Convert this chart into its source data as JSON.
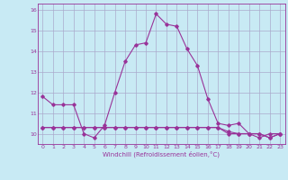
{
  "xlabel": "Windchill (Refroidissement éolien,°C)",
  "x": [
    0,
    1,
    2,
    3,
    4,
    5,
    6,
    7,
    8,
    9,
    10,
    11,
    12,
    13,
    14,
    15,
    16,
    17,
    18,
    19,
    20,
    21,
    22,
    23
  ],
  "line1_y": [
    11.8,
    11.4,
    11.4,
    11.4,
    10.0,
    9.8,
    10.4,
    12.0,
    13.5,
    14.3,
    14.4,
    15.8,
    15.3,
    15.2,
    14.1,
    13.3,
    11.7,
    10.5,
    10.4,
    10.5,
    10.0,
    9.8,
    10.0,
    10.0
  ],
  "line2_y": [
    10.3,
    10.3,
    10.3,
    10.3,
    10.3,
    10.3,
    10.3,
    10.3,
    10.3,
    10.3,
    10.3,
    10.3,
    10.3,
    10.3,
    10.3,
    10.3,
    10.3,
    10.3,
    10.1,
    10.0,
    10.0,
    10.0,
    9.8,
    10.0
  ],
  "line3_y": [
    10.3,
    10.3,
    10.3,
    10.3,
    10.3,
    10.3,
    10.3,
    10.3,
    10.3,
    10.3,
    10.3,
    10.3,
    10.3,
    10.3,
    10.3,
    10.3,
    10.3,
    10.3,
    10.0,
    10.0,
    10.0,
    10.0,
    9.8,
    10.0
  ],
  "line_color": "#993399",
  "bg_color": "#c8eaf4",
  "grid_color": "#aaaacc",
  "ylim": [
    9.5,
    16.3
  ],
  "xlim": [
    -0.5,
    23.5
  ],
  "yticks": [
    10,
    11,
    12,
    13,
    14,
    15,
    16
  ],
  "xticks": [
    0,
    1,
    2,
    3,
    4,
    5,
    6,
    7,
    8,
    9,
    10,
    11,
    12,
    13,
    14,
    15,
    16,
    17,
    18,
    19,
    20,
    21,
    22,
    23
  ]
}
